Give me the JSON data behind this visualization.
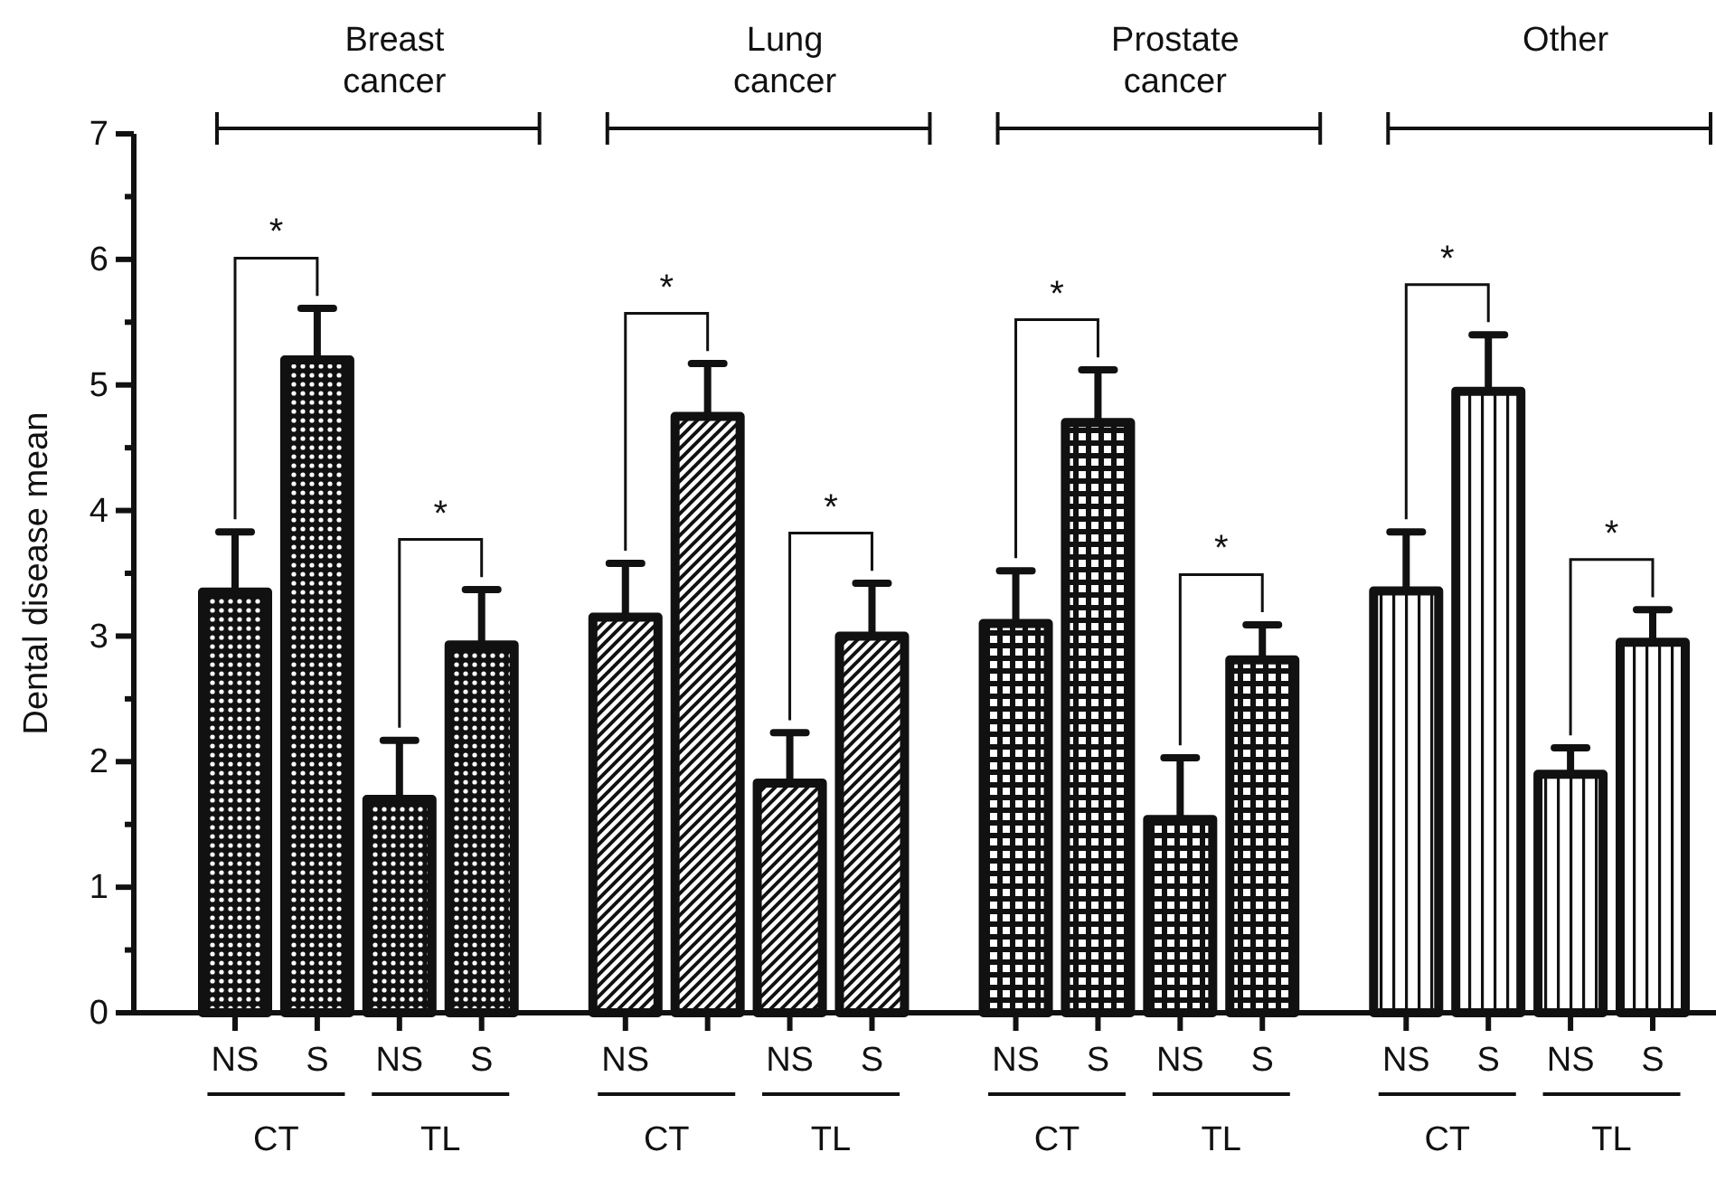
{
  "chart_data": {
    "type": "bar",
    "ylabel": "Dental disease mean",
    "categories": [
      "NS",
      "S",
      "NS",
      "S",
      "NS",
      null,
      "NS",
      "S",
      "NS",
      "S",
      "NS",
      "S",
      "NS",
      "S",
      "NS",
      "S"
    ],
    "values": [
      3.35,
      5.2,
      1.7,
      2.93,
      3.15,
      4.75,
      1.83,
      3.0,
      3.1,
      4.7,
      1.54,
      2.81,
      3.36,
      4.95,
      1.9,
      2.95
    ],
    "errors": [
      [
        3.35,
        3.83
      ],
      [
        5.2,
        5.61
      ],
      [
        1.7,
        2.17
      ],
      [
        2.93,
        3.37
      ],
      [
        3.15,
        3.58
      ],
      [
        4.75,
        5.17
      ],
      [
        1.83,
        2.23
      ],
      [
        3.0,
        3.42
      ],
      [
        3.1,
        3.52
      ],
      [
        4.7,
        5.12
      ],
      [
        1.54,
        2.03
      ],
      [
        2.81,
        3.09
      ],
      [
        3.36,
        3.83
      ],
      [
        4.95,
        5.4
      ],
      [
        1.9,
        2.11
      ],
      [
        2.95,
        3.21
      ]
    ],
    "colors": [
      "#111111",
      "#111111",
      "#111111",
      "#111111",
      "#111111",
      "#111111",
      "#111111",
      "#111111",
      "#111111",
      "#111111",
      "#111111",
      "#111111",
      "#111111",
      "#111111",
      "#111111",
      "#111111"
    ],
    "ylim": [
      0,
      7
    ],
    "yticks": [
      0,
      {
        "value": 0.5,
        "label": null
      },
      1,
      {
        "value": 1.5,
        "label": null
      },
      2,
      {
        "value": 2.5,
        "label": null
      },
      3,
      {
        "value": 3.5,
        "label": null
      },
      4,
      {
        "value": 4.5,
        "label": null
      },
      5,
      {
        "value": 5.5,
        "label": null
      },
      6,
      {
        "value": 6.5,
        "label": null
      },
      7
    ],
    "annotations": [
      "Breast cancer",
      "Lung cancer",
      "Prostate cancer",
      "Other",
      "CT",
      "TL",
      "CT",
      "TL",
      "CT",
      "TL",
      "CT",
      "TL",
      "*",
      "*",
      "*",
      "*",
      "*",
      "*",
      "*",
      "*"
    ]
  }
}
